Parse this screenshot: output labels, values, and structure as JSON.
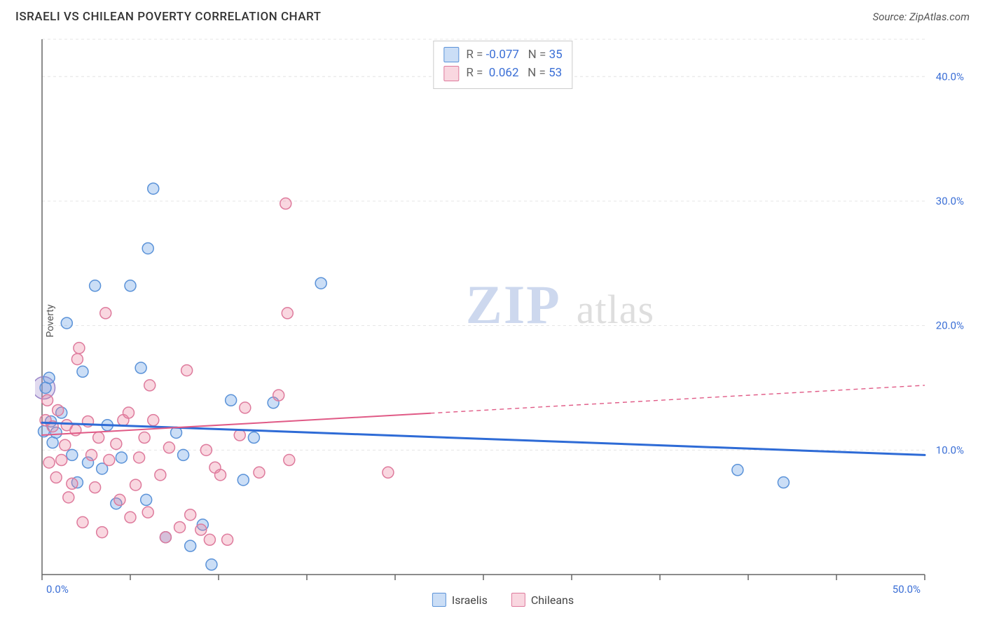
{
  "title": "ISRAELI VS CHILEAN POVERTY CORRELATION CHART",
  "source": "Source: ZipAtlas.com",
  "y_label": "Poverty",
  "watermark": {
    "zip": "ZIP",
    "atlas": "atlas"
  },
  "legend_top": {
    "rows": [
      {
        "swatch": "blue",
        "r_label": "R",
        "r_value": "-0.077",
        "n_label": "N",
        "n_value": "35"
      },
      {
        "swatch": "pink",
        "r_label": "R",
        "r_value": "0.062",
        "n_label": "N",
        "n_value": "53"
      }
    ]
  },
  "legend_bottom": [
    {
      "swatch": "blue",
      "label": "Israelis"
    },
    {
      "swatch": "pink",
      "label": "Chileans"
    }
  ],
  "chart": {
    "type": "scatter",
    "background_color": "#ffffff",
    "grid_color": "#e4e4e4",
    "axis_color": "#666666",
    "tick_label_color": "#3b6fd6",
    "tick_label_fontsize": 15,
    "xlim": [
      0,
      50
    ],
    "ylim": [
      0,
      43
    ],
    "x_ticks": [
      0,
      5,
      10,
      15,
      20,
      25,
      30,
      35,
      40,
      45,
      50
    ],
    "x_tick_labels": {
      "0": "0.0%",
      "50": "50.0%"
    },
    "y_ticks": [
      10,
      20,
      30,
      40,
      43
    ],
    "y_tick_labels": {
      "10": "10.0%",
      "20": "20.0%",
      "30": "30.0%",
      "40": "40.0%"
    },
    "point_radius": 8,
    "series": [
      {
        "name": "Israelis",
        "fill": "rgba(107,160,230,0.35)",
        "stroke": "#5a92d8",
        "points": [
          [
            0.2,
            15.0
          ],
          [
            0.4,
            15.8
          ],
          [
            1.1,
            13.0
          ],
          [
            1.4,
            20.2
          ],
          [
            1.7,
            9.6
          ],
          [
            2.3,
            16.3
          ],
          [
            0.8,
            11.4
          ],
          [
            0.5,
            12.3
          ],
          [
            2.0,
            7.4
          ],
          [
            2.6,
            9.0
          ],
          [
            3.4,
            8.5
          ],
          [
            3.0,
            23.2
          ],
          [
            4.2,
            5.7
          ],
          [
            4.5,
            9.4
          ],
          [
            5.6,
            16.6
          ],
          [
            5.0,
            23.2
          ],
          [
            5.9,
            6.0
          ],
          [
            6.3,
            31.0
          ],
          [
            6.0,
            26.2
          ],
          [
            7.0,
            3.0
          ],
          [
            7.6,
            11.4
          ],
          [
            8.4,
            2.3
          ],
          [
            8.0,
            9.6
          ],
          [
            9.1,
            4.0
          ],
          [
            9.6,
            0.8
          ],
          [
            10.7,
            14.0
          ],
          [
            13.1,
            13.8
          ],
          [
            15.8,
            23.4
          ],
          [
            11.4,
            7.6
          ],
          [
            12.0,
            11.0
          ],
          [
            39.4,
            8.4
          ],
          [
            42.0,
            7.4
          ],
          [
            0.6,
            10.6
          ],
          [
            3.7,
            12.0
          ],
          [
            0.1,
            11.5
          ]
        ],
        "fit": {
          "x1": 0,
          "y1": 12.2,
          "x2": 50,
          "y2": 9.6,
          "solid_until_x": 50,
          "color": "#2e6bd6",
          "width": 3,
          "dash": "6 5"
        }
      },
      {
        "name": "Chileans",
        "fill": "rgba(235,130,160,0.32)",
        "stroke": "#de7a9c",
        "points": [
          [
            0.2,
            12.4
          ],
          [
            0.6,
            11.9
          ],
          [
            0.9,
            13.2
          ],
          [
            0.3,
            14.0
          ],
          [
            1.4,
            12.0
          ],
          [
            1.9,
            11.6
          ],
          [
            1.1,
            9.2
          ],
          [
            1.7,
            7.3
          ],
          [
            2.3,
            4.2
          ],
          [
            2.6,
            12.3
          ],
          [
            2.0,
            17.3
          ],
          [
            2.1,
            18.2
          ],
          [
            3.2,
            11.0
          ],
          [
            3.0,
            7.0
          ],
          [
            3.6,
            21.0
          ],
          [
            3.8,
            9.2
          ],
          [
            4.2,
            10.5
          ],
          [
            4.4,
            6.0
          ],
          [
            4.6,
            12.4
          ],
          [
            5.0,
            4.6
          ],
          [
            5.5,
            9.4
          ],
          [
            5.8,
            11.0
          ],
          [
            6.0,
            5.0
          ],
          [
            6.3,
            12.4
          ],
          [
            6.7,
            8.0
          ],
          [
            7.2,
            10.2
          ],
          [
            7.0,
            3.0
          ],
          [
            7.8,
            3.8
          ],
          [
            8.2,
            16.4
          ],
          [
            8.4,
            4.8
          ],
          [
            9.0,
            3.6
          ],
          [
            9.3,
            10.0
          ],
          [
            9.5,
            2.8
          ],
          [
            9.8,
            8.6
          ],
          [
            10.1,
            8.0
          ],
          [
            10.5,
            2.8
          ],
          [
            11.5,
            13.4
          ],
          [
            12.3,
            8.2
          ],
          [
            13.4,
            14.4
          ],
          [
            13.8,
            29.8
          ],
          [
            13.9,
            21.0
          ],
          [
            14.0,
            9.2
          ],
          [
            19.6,
            8.2
          ],
          [
            2.8,
            9.6
          ],
          [
            1.3,
            10.4
          ],
          [
            0.4,
            9.0
          ],
          [
            0.8,
            7.8
          ],
          [
            1.5,
            6.2
          ],
          [
            3.4,
            3.4
          ],
          [
            4.9,
            13.0
          ],
          [
            6.1,
            15.2
          ],
          [
            5.3,
            7.2
          ],
          [
            11.2,
            11.2
          ]
        ],
        "fit": {
          "x1": 0,
          "y1": 11.2,
          "x2": 50,
          "y2": 15.2,
          "solid_until_x": 22,
          "color": "#e05a86",
          "width": 2,
          "dash": "6 5"
        }
      }
    ],
    "extra_points": [
      {
        "x": 0.1,
        "y": 15.0,
        "r": 16,
        "fill": "rgba(170,150,210,0.35)",
        "stroke": "#9a85c8"
      }
    ]
  }
}
